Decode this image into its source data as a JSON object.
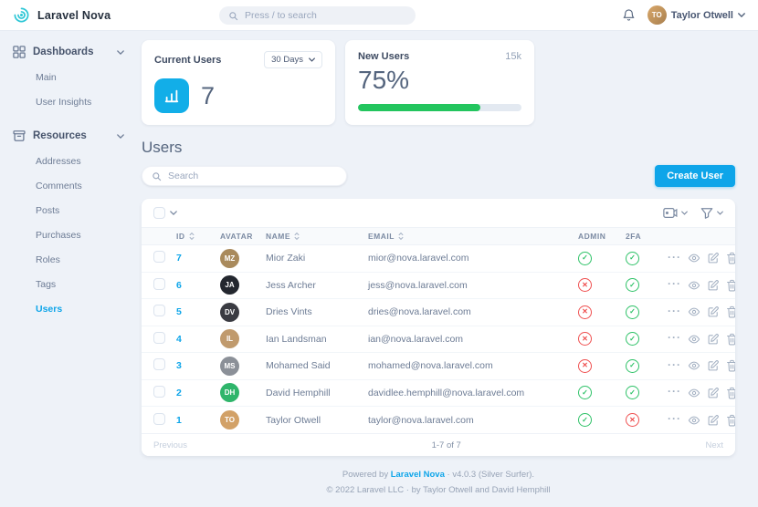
{
  "header": {
    "brand": "Laravel Nova",
    "search_placeholder": "Press / to search",
    "user_name": "Taylor Otwell",
    "user_initials": "TO"
  },
  "sidebar": {
    "dashboards_label": "Dashboards",
    "dashboards_items": [
      "Main",
      "User Insights"
    ],
    "resources_label": "Resources",
    "resources_items": [
      "Addresses",
      "Comments",
      "Posts",
      "Purchases",
      "Roles",
      "Tags",
      "Users"
    ],
    "active_item": "Users"
  },
  "metrics": {
    "current_users": {
      "title": "Current Users",
      "range": "30 Days",
      "value": "7"
    },
    "new_users": {
      "title": "New Users",
      "total": "15k",
      "percent": "75%",
      "progress": 75
    }
  },
  "page": {
    "title": "Users",
    "search_placeholder": "Search",
    "create_button": "Create User"
  },
  "users_table": {
    "columns": [
      "ID",
      "AVATAR",
      "NAME",
      "EMAIL",
      "ADMIN",
      "2FA"
    ],
    "rows": [
      {
        "id": "7",
        "initials": "MZ",
        "avatar_color": "#a98a5c",
        "name": "Mior Zaki",
        "email": "mior@nova.laravel.com",
        "admin": true,
        "tfa": true
      },
      {
        "id": "6",
        "initials": "JA",
        "avatar_color": "#23272f",
        "name": "Jess Archer",
        "email": "jess@nova.laravel.com",
        "admin": false,
        "tfa": true
      },
      {
        "id": "5",
        "initials": "DV",
        "avatar_color": "#3a3b42",
        "name": "Dries Vints",
        "email": "dries@nova.laravel.com",
        "admin": false,
        "tfa": true
      },
      {
        "id": "4",
        "initials": "IL",
        "avatar_color": "#c09a6d",
        "name": "Ian Landsman",
        "email": "ian@nova.laravel.com",
        "admin": false,
        "tfa": true
      },
      {
        "id": "3",
        "initials": "MS",
        "avatar_color": "#8b9098",
        "name": "Mohamed Said",
        "email": "mohamed@nova.laravel.com",
        "admin": false,
        "tfa": true
      },
      {
        "id": "2",
        "initials": "DH",
        "avatar_color": "#2fb56b",
        "name": "David Hemphill",
        "email": "davidlee.hemphill@nova.laravel.com",
        "admin": true,
        "tfa": true
      },
      {
        "id": "1",
        "initials": "TO",
        "avatar_color": "#d2a167",
        "name": "Taylor Otwell",
        "email": "taylor@nova.laravel.com",
        "admin": true,
        "tfa": false
      }
    ],
    "pagination": {
      "previous": "Previous",
      "range": "1-7 of 7",
      "next": "Next"
    }
  },
  "footer": {
    "powered_prefix": "Powered by",
    "powered_link": "Laravel Nova",
    "powered_suffix": "· v4.0.3 (Silver Surfer).",
    "copyright": "© 2022 Laravel LLC · by Taylor Otwell and David Hemphill"
  },
  "colors": {
    "accent": "#0ea5e9",
    "logo_teal": "#2ec7d6",
    "success_green": "#2fc268",
    "danger_red": "#ef5050",
    "progress_green": "#23c55e"
  }
}
